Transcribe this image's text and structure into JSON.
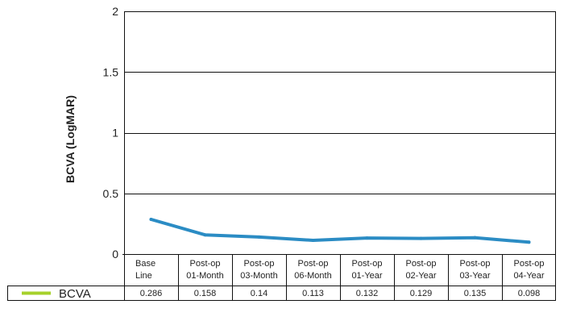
{
  "chart_data": {
    "type": "line",
    "categories": [
      [
        "Base",
        "Line"
      ],
      [
        "Post-op",
        "01-Month"
      ],
      [
        "Post-op",
        "03-Month"
      ],
      [
        "Post-op",
        "06-Month"
      ],
      [
        "Post-op",
        "01-Year"
      ],
      [
        "Post-op",
        "02-Year"
      ],
      [
        "Post-op",
        "03-Year"
      ],
      [
        "Post-op",
        "04-Year"
      ]
    ],
    "series": [
      {
        "name": "BCVA",
        "values": [
          0.286,
          0.158,
          0.14,
          0.113,
          0.132,
          0.129,
          0.135,
          0.098
        ],
        "value_labels": [
          "0.286",
          "0.158",
          "0.14",
          "0.113",
          "0.132",
          "0.129",
          "0.135",
          "0.098"
        ],
        "color": "#2b8cc4",
        "legend_color": "#a6d12b"
      }
    ],
    "title": "",
    "xlabel": "",
    "ylabel": "BCVA (LogMAR)",
    "ylim": [
      0,
      2
    ],
    "yticks": [
      0,
      0.5,
      1,
      1.5,
      2
    ],
    "ytick_labels": [
      "0",
      "0.5",
      "1",
      "1.5",
      "2"
    ],
    "grid": true,
    "legend_position": "bottom-left",
    "data_table": true
  }
}
